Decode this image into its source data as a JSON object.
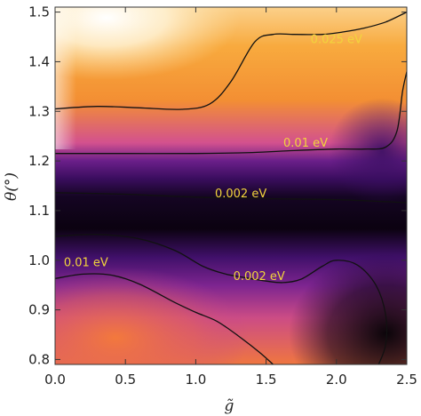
{
  "chart_data": {
    "type": "heatmap",
    "xlabel": "g̃",
    "ylabel": "θ(°)",
    "xlim": [
      0.0,
      2.5
    ],
    "ylim": [
      0.79,
      1.51
    ],
    "x_ticks": [
      "0.0",
      "0.5",
      "1.0",
      "1.5",
      "2.0",
      "2.5"
    ],
    "x_tick_values": [
      0.0,
      0.5,
      1.0,
      1.5,
      2.0,
      2.5
    ],
    "y_ticks": [
      "0.8",
      "0.9",
      "1.0",
      "1.1",
      "1.2",
      "1.3",
      "1.4",
      "1.5"
    ],
    "y_tick_values": [
      0.8,
      0.9,
      1.0,
      1.1,
      1.2,
      1.3,
      1.4,
      1.5
    ],
    "colormap": [
      "#000004",
      "#2d0a4e",
      "#6a1d82",
      "#a23a8e",
      "#d9507a",
      "#f3743c",
      "#f7a12e",
      "#fde0a6",
      "#ffffff"
    ],
    "label_color": "#f2d43c",
    "contours": [
      {
        "label": "0.025 eV",
        "label_at": [
          2.0,
          1.445
        ],
        "points": [
          [
            0.0,
            1.305
          ],
          [
            0.3,
            1.31
          ],
          [
            0.6,
            1.307
          ],
          [
            0.9,
            1.304
          ],
          [
            1.1,
            1.315
          ],
          [
            1.25,
            1.36
          ],
          [
            1.42,
            1.44
          ],
          [
            1.55,
            1.455
          ],
          [
            1.7,
            1.455
          ],
          [
            1.9,
            1.455
          ],
          [
            2.05,
            1.46
          ],
          [
            2.2,
            1.468
          ],
          [
            2.35,
            1.48
          ],
          [
            2.5,
            1.5
          ]
        ]
      },
      {
        "label": "0.01 eV",
        "label_at": [
          1.78,
          1.236
        ],
        "points": [
          [
            0.0,
            1.215
          ],
          [
            0.5,
            1.215
          ],
          [
            1.0,
            1.215
          ],
          [
            1.4,
            1.217
          ],
          [
            1.7,
            1.221
          ],
          [
            2.0,
            1.224
          ],
          [
            2.2,
            1.224
          ],
          [
            2.35,
            1.228
          ],
          [
            2.43,
            1.26
          ],
          [
            2.47,
            1.34
          ],
          [
            2.5,
            1.38
          ]
        ]
      },
      {
        "label": "0.002 eV",
        "label_at": [
          1.32,
          1.134
        ],
        "points": [
          [
            0.0,
            1.136
          ],
          [
            0.5,
            1.133
          ],
          [
            1.0,
            1.127
          ],
          [
            1.5,
            1.124
          ],
          [
            2.0,
            1.122
          ],
          [
            2.5,
            1.116
          ]
        ]
      },
      {
        "label": "0.002 eV",
        "label_at": [
          1.45,
          0.967
        ],
        "points": [
          [
            0.0,
            1.048
          ],
          [
            0.3,
            1.052
          ],
          [
            0.6,
            1.043
          ],
          [
            0.85,
            1.02
          ],
          [
            1.05,
            0.988
          ],
          [
            1.2,
            0.973
          ],
          [
            1.35,
            0.965
          ],
          [
            1.5,
            0.958
          ],
          [
            1.62,
            0.955
          ],
          [
            1.75,
            0.962
          ],
          [
            1.9,
            0.988
          ],
          [
            2.0,
            1.0
          ],
          [
            2.15,
            0.99
          ],
          [
            2.28,
            0.95
          ],
          [
            2.35,
            0.89
          ],
          [
            2.35,
            0.83
          ],
          [
            2.3,
            0.79
          ]
        ]
      },
      {
        "label": "0.01 eV",
        "label_at": [
          0.22,
          0.995
        ],
        "points": [
          [
            0.0,
            0.963
          ],
          [
            0.2,
            0.972
          ],
          [
            0.4,
            0.97
          ],
          [
            0.6,
            0.952
          ],
          [
            0.85,
            0.915
          ],
          [
            1.0,
            0.895
          ],
          [
            1.15,
            0.877
          ],
          [
            1.3,
            0.848
          ],
          [
            1.45,
            0.815
          ],
          [
            1.55,
            0.79
          ]
        ]
      }
    ]
  }
}
